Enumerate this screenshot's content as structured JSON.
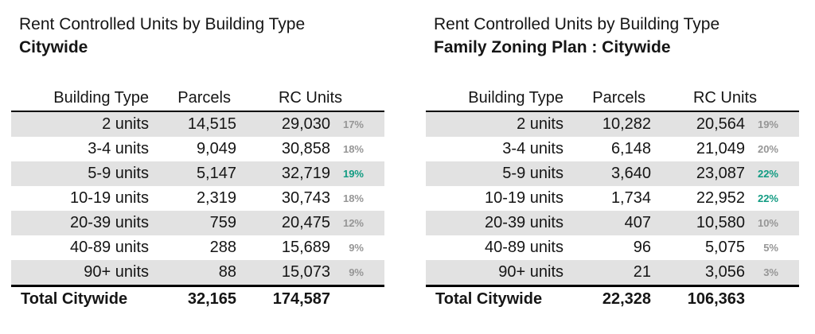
{
  "colors": {
    "band_gray": "#e2e2e2",
    "pct_gray": "#969696",
    "pct_teal": "#119b82",
    "text": "#151515",
    "rule_black": "#000000"
  },
  "tables": [
    {
      "title_line1": "Rent Controlled Units by Building Type",
      "title_line2": "Citywide",
      "headers": {
        "building_type": "Building Type",
        "parcels": "Parcels",
        "rc_units": "RC Units"
      },
      "rows": [
        {
          "building_type": "2 units",
          "parcels": "14,515",
          "rc_units": "29,030",
          "pct": "17%",
          "pct_highlight": false
        },
        {
          "building_type": "3-4 units",
          "parcels": "9,049",
          "rc_units": "30,858",
          "pct": "18%",
          "pct_highlight": false
        },
        {
          "building_type": "5-9 units",
          "parcels": "5,147",
          "rc_units": "32,719",
          "pct": "19%",
          "pct_highlight": true
        },
        {
          "building_type": "10-19 units",
          "parcels": "2,319",
          "rc_units": "30,743",
          "pct": "18%",
          "pct_highlight": false
        },
        {
          "building_type": "20-39 units",
          "parcels": "759",
          "rc_units": "20,475",
          "pct": "12%",
          "pct_highlight": false
        },
        {
          "building_type": "40-89 units",
          "parcels": "288",
          "rc_units": "15,689",
          "pct": "9%",
          "pct_highlight": false
        },
        {
          "building_type": "90+ units",
          "parcels": "88",
          "rc_units": "15,073",
          "pct": "9%",
          "pct_highlight": false
        }
      ],
      "total": {
        "label": "Total Citywide",
        "parcels": "32,165",
        "rc_units": "174,587"
      }
    },
    {
      "title_line1": "Rent Controlled Units by Building Type",
      "title_line2": "Family Zoning Plan : Citywide",
      "headers": {
        "building_type": "Building Type",
        "parcels": "Parcels",
        "rc_units": "RC Units"
      },
      "rows": [
        {
          "building_type": "2 units",
          "parcels": "10,282",
          "rc_units": "20,564",
          "pct": "19%",
          "pct_highlight": false
        },
        {
          "building_type": "3-4 units",
          "parcels": "6,148",
          "rc_units": "21,049",
          "pct": "20%",
          "pct_highlight": false
        },
        {
          "building_type": "5-9 units",
          "parcels": "3,640",
          "rc_units": "23,087",
          "pct": "22%",
          "pct_highlight": true
        },
        {
          "building_type": "10-19 units",
          "parcels": "1,734",
          "rc_units": "22,952",
          "pct": "22%",
          "pct_highlight": true
        },
        {
          "building_type": "20-39 units",
          "parcels": "407",
          "rc_units": "10,580",
          "pct": "10%",
          "pct_highlight": false
        },
        {
          "building_type": "40-89 units",
          "parcels": "96",
          "rc_units": "5,075",
          "pct": "5%",
          "pct_highlight": false
        },
        {
          "building_type": "90+ units",
          "parcels": "21",
          "rc_units": "3,056",
          "pct": "3%",
          "pct_highlight": false
        }
      ],
      "total": {
        "label": "Total Citywide",
        "parcels": "22,328",
        "rc_units": "106,363"
      }
    }
  ],
  "chart_data": [
    {
      "type": "table",
      "title": "Rent Controlled Units by Building Type",
      "subtitle": "Citywide",
      "columns": [
        "Building Type",
        "Parcels",
        "RC Units",
        ""
      ],
      "rows": [
        [
          "2 units",
          14515,
          29030,
          "17%"
        ],
        [
          "3-4 units",
          9049,
          30858,
          "18%"
        ],
        [
          "5-9 units",
          5147,
          32719,
          "19%"
        ],
        [
          "10-19 units",
          2319,
          30743,
          "18%"
        ],
        [
          "20-39 units",
          759,
          20475,
          "12%"
        ],
        [
          "40-89 units",
          288,
          15689,
          "9%"
        ],
        [
          "90+ units",
          88,
          15073,
          "9%"
        ]
      ],
      "total_row": [
        "Total Citywide",
        32165,
        174587,
        ""
      ],
      "highlighted_pct_rows": [
        "5-9 units"
      ]
    },
    {
      "type": "table",
      "title": "Rent Controlled Units by Building Type",
      "subtitle": "Family Zoning Plan : Citywide",
      "columns": [
        "Building Type",
        "Parcels",
        "RC Units",
        ""
      ],
      "rows": [
        [
          "2 units",
          10282,
          20564,
          "19%"
        ],
        [
          "3-4 units",
          6148,
          21049,
          "20%"
        ],
        [
          "5-9 units",
          3640,
          23087,
          "22%"
        ],
        [
          "10-19 units",
          1734,
          22952,
          "22%"
        ],
        [
          "20-39 units",
          407,
          10580,
          "10%"
        ],
        [
          "40-89 units",
          96,
          5075,
          "5%"
        ],
        [
          "90+ units",
          21,
          3056,
          "3%"
        ]
      ],
      "total_row": [
        "Total Citywide",
        22328,
        106363,
        ""
      ],
      "highlighted_pct_rows": [
        "5-9 units",
        "10-19 units"
      ]
    }
  ]
}
